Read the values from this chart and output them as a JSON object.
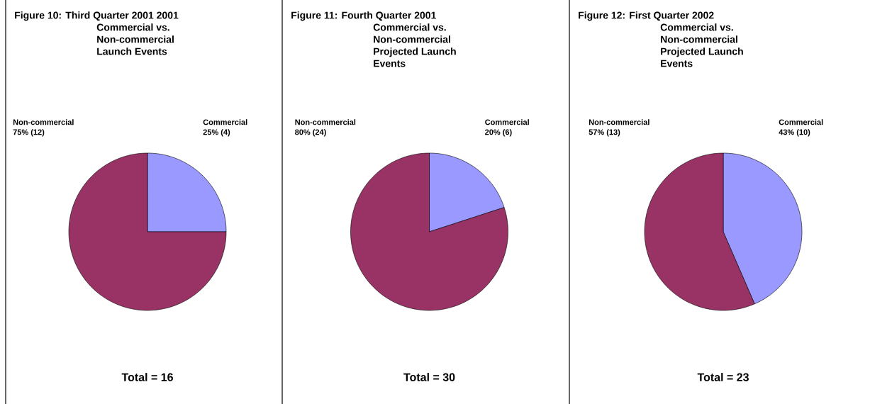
{
  "chart_data": [
    {
      "type": "pie",
      "title": "Figure 10: Third Quarter 2001 2001 Commercial vs. Non-commercial Launch Events",
      "categories": [
        "Commercial",
        "Non-commercial"
      ],
      "values": [
        4,
        12
      ],
      "colors": [
        "#9999ff",
        "#993366"
      ],
      "value_labels": [
        "25% (4)",
        "75% (12)"
      ],
      "annotations": [
        "Total = 16"
      ]
    },
    {
      "type": "pie",
      "title": "Figure 11: Fourth Quarter 2001 Commercial vs. Non-commercial Projected Launch Events",
      "categories": [
        "Commercial",
        "Non-commercial"
      ],
      "values": [
        6,
        24
      ],
      "colors": [
        "#9999ff",
        "#993366"
      ],
      "value_labels": [
        "20% (6)",
        "80% (24)"
      ],
      "annotations": [
        "Total = 30"
      ]
    },
    {
      "type": "pie",
      "title": "Figure 12: First Quarter 2002 Commercial vs. Non-commercial Projected Launch Events",
      "categories": [
        "Commercial",
        "Non-commercial"
      ],
      "values": [
        10,
        13
      ],
      "colors": [
        "#9999ff",
        "#993366"
      ],
      "value_labels": [
        "43% (10)",
        "57% (13)"
      ],
      "annotations": [
        "Total = 23"
      ]
    }
  ]
}
